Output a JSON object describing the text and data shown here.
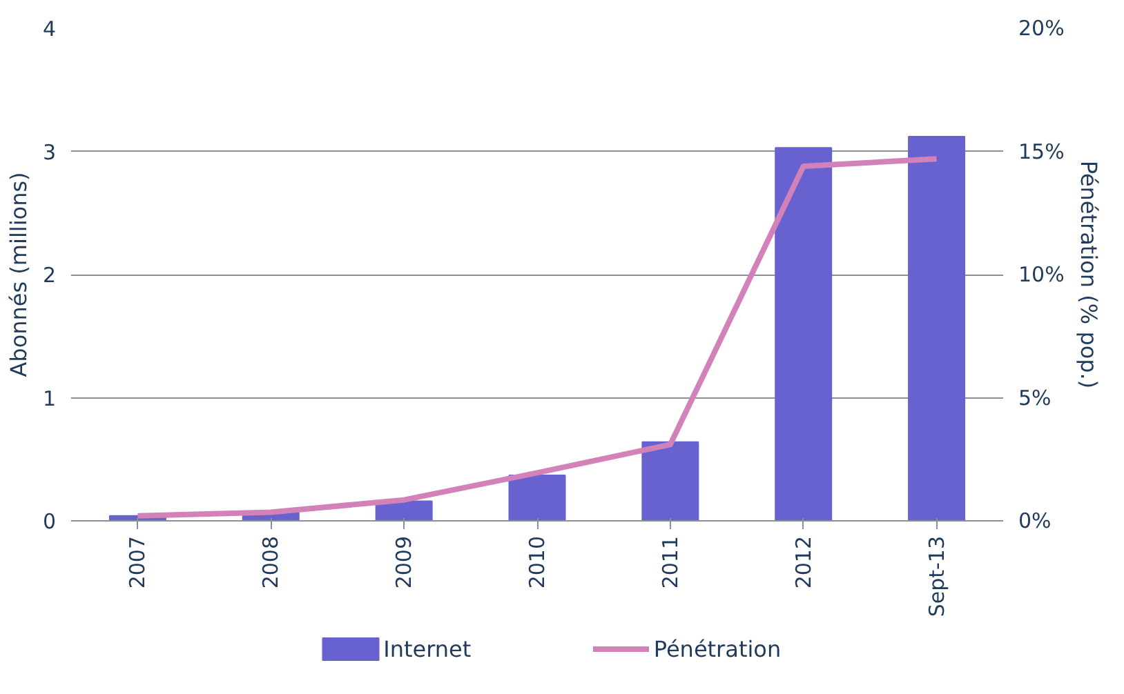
{
  "chart_data": {
    "type": "bar",
    "ylabel": "Abonnés (millions)",
    "y2label": "Pénétration (% pop.)",
    "categories": [
      "2007",
      "2008",
      "2009",
      "2010",
      "2011",
      "2012",
      "Sept-13"
    ],
    "series": [
      {
        "name": "Internet",
        "type": "bar",
        "color": "#6762d0",
        "values": [
          0.04,
          0.07,
          0.16,
          0.37,
          0.64,
          3.03,
          3.12
        ]
      },
      {
        "name": "Pénétration",
        "type": "line",
        "axis": "y2",
        "color": "#d282b9",
        "values": [
          0.2,
          0.35,
          0.85,
          1.95,
          3.1,
          14.4,
          14.7
        ]
      }
    ],
    "ylim": [
      0,
      4
    ],
    "yticks": [
      0,
      1,
      2,
      3,
      4
    ],
    "y2lim": [
      0,
      20
    ],
    "y2ticks": [
      {
        "value": 0,
        "label": "0%"
      },
      {
        "value": 5,
        "label": "5%"
      },
      {
        "value": 10,
        "label": "10%"
      },
      {
        "value": 15,
        "label": "15%"
      },
      {
        "value": 20,
        "label": "20%"
      }
    ],
    "grid": "y",
    "legend": "bottom",
    "marker": "none",
    "line_style": "solid"
  }
}
